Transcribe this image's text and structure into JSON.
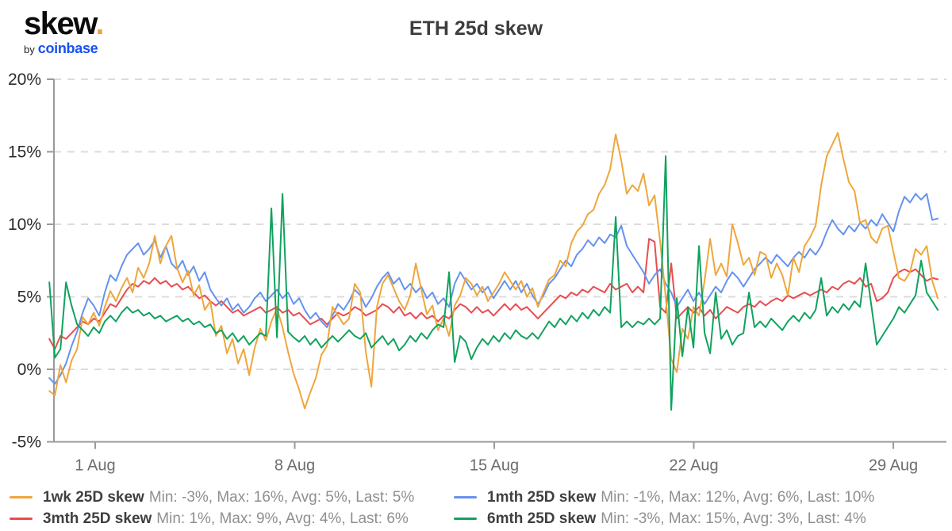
{
  "header": {
    "logo_text": "skew",
    "logo_dot": ".",
    "byline_by": "by",
    "byline_brand": "coinbase",
    "title": "ETH 25d skew"
  },
  "chart_data": {
    "type": "line",
    "title": "ETH 25d skew",
    "xlabel": "",
    "ylabel": "",
    "grid": "horizontal-dashed",
    "legend_position": "bottom",
    "x_axis": {
      "ticks": [
        {
          "day": 0,
          "label": "1 Aug"
        },
        {
          "day": 7,
          "label": "8 Aug"
        },
        {
          "day": 14,
          "label": "15 Aug"
        },
        {
          "day": 21,
          "label": "22 Aug"
        },
        {
          "day": 28,
          "label": "29 Aug"
        }
      ]
    },
    "y_axis": {
      "min": -5,
      "max": 20,
      "step": 5,
      "unit": "%",
      "grid_values": [
        0,
        5,
        10,
        15,
        20
      ],
      "ticks": [
        {
          "value": -5,
          "label": "-5%"
        },
        {
          "value": 0,
          "label": "0%"
        },
        {
          "value": 5,
          "label": "5%"
        },
        {
          "value": 10,
          "label": "10%"
        },
        {
          "value": 15,
          "label": "15%"
        },
        {
          "value": 20,
          "label": "20%"
        }
      ]
    },
    "series": [
      {
        "name": "1wk 25D skew",
        "color": "#EFA63C",
        "stats": "Min: -3%, Max: 16%, Avg: 5%, Last: 5%",
        "x_start": -1.61,
        "x_end": 29.56,
        "values": [
          -1.5,
          -1.8,
          0.3,
          -0.9,
          0.6,
          1.4,
          3.6,
          3.1,
          3.9,
          3.0,
          4.3,
          5.4,
          4.7,
          5.6,
          6.3,
          5.3,
          7.0,
          6.3,
          7.3,
          9.2,
          7.3,
          8.5,
          9.2,
          7.0,
          6.0,
          6.8,
          5.1,
          5.8,
          4.1,
          4.7,
          2.3,
          3.0,
          1.1,
          2.1,
          0.4,
          1.4,
          -0.4,
          1.5,
          2.8,
          2.0,
          3.3,
          4.2,
          2.9,
          1.2,
          -0.3,
          -1.4,
          -2.7,
          -1.6,
          -0.6,
          1.0,
          1.6,
          4.3,
          3.7,
          3.1,
          3.5,
          5.9,
          5.3,
          1.2,
          -1.2,
          4.3,
          5.9,
          6.5,
          5.6,
          4.7,
          4.1,
          5.1,
          7.3,
          5.5,
          3.8,
          4.4,
          2.7,
          3.5,
          2.3,
          4.4,
          5.1,
          6.3,
          5.9,
          5.1,
          5.7,
          4.7,
          5.3,
          5.9,
          6.7,
          6.1,
          5.5,
          6.1,
          5.0,
          5.6,
          4.3,
          5.3,
          6.2,
          6.5,
          7.5,
          7.1,
          8.7,
          9.5,
          9.9,
          10.7,
          11.0,
          12.1,
          12.7,
          13.8,
          16.2,
          14.4,
          12.1,
          12.7,
          12.3,
          13.5,
          11.3,
          12.0,
          8.8,
          5.0,
          0.7,
          -0.2,
          2.8,
          2.1,
          4.3,
          3.7,
          6.1,
          9.0,
          6.5,
          7.3,
          6.4,
          10.0,
          8.7,
          7.2,
          7.7,
          6.5,
          8.1,
          7.9,
          6.3,
          7.3,
          6.5,
          5.1,
          7.7,
          6.7,
          8.5,
          9.1,
          9.9,
          12.7,
          14.7,
          15.5,
          16.3,
          14.5,
          12.9,
          12.3,
          10.1,
          10.3,
          9.1,
          8.7,
          9.7,
          9.9,
          8.1,
          6.3,
          6.1,
          6.7,
          8.3,
          7.9,
          8.5,
          6.1,
          4.9
        ]
      },
      {
        "name": "1mth 25D skew",
        "color": "#6592F0",
        "stats": "Min: -1%, Max: 12%, Avg: 6%, Last: 10%",
        "x_start": -1.61,
        "x_end": 29.56,
        "values": [
          -0.6,
          -1.0,
          -0.4,
          0.4,
          1.6,
          2.6,
          3.9,
          4.9,
          4.4,
          3.7,
          5.3,
          6.5,
          6.1,
          7.1,
          7.9,
          8.3,
          8.7,
          7.9,
          8.3,
          8.9,
          7.7,
          8.5,
          7.3,
          6.9,
          7.5,
          6.5,
          7.1,
          6.1,
          6.7,
          5.5,
          4.9,
          4.4,
          4.9,
          4.1,
          4.5,
          3.9,
          4.3,
          4.9,
          5.3,
          4.7,
          5.1,
          5.5,
          4.9,
          5.3,
          4.5,
          4.9,
          4.1,
          3.5,
          3.9,
          3.3,
          2.9,
          3.7,
          4.5,
          4.1,
          4.7,
          5.5,
          5.1,
          4.3,
          4.9,
          5.7,
          6.3,
          6.7,
          5.9,
          6.3,
          5.5,
          5.9,
          5.3,
          5.7,
          4.9,
          5.3,
          4.5,
          4.9,
          4.3,
          5.9,
          6.7,
          6.1,
          5.5,
          5.9,
          5.3,
          5.7,
          4.9,
          5.5,
          6.1,
          5.5,
          6.1,
          5.3,
          5.9,
          5.1,
          4.5,
          5.1,
          5.9,
          6.3,
          6.9,
          7.5,
          7.1,
          7.9,
          8.3,
          8.9,
          8.5,
          9.1,
          8.7,
          9.3,
          9.1,
          9.9,
          8.5,
          7.9,
          7.3,
          6.7,
          5.9,
          6.5,
          6.9,
          5.9,
          5.3,
          4.3,
          4.9,
          5.5,
          4.7,
          5.3,
          4.5,
          5.1,
          5.7,
          5.3,
          6.1,
          6.7,
          6.3,
          5.7,
          6.3,
          6.9,
          7.3,
          7.7,
          7.3,
          7.9,
          7.5,
          7.1,
          7.7,
          8.1,
          7.7,
          8.3,
          7.9,
          8.5,
          9.5,
          10.3,
          9.7,
          9.3,
          9.9,
          9.5,
          10.1,
          9.7,
          10.3,
          9.9,
          10.7,
          10.1,
          9.5,
          10.9,
          11.9,
          11.5,
          12.1,
          11.7,
          12.1,
          10.3,
          10.4
        ]
      },
      {
        "name": "3mth 25D skew",
        "color": "#E84C50",
        "stats": "Min: 1%, Max: 9%, Avg: 4%, Last: 6%",
        "x_start": -1.61,
        "x_end": 29.56,
        "values": [
          2.1,
          1.4,
          2.3,
          2.1,
          2.5,
          2.9,
          3.3,
          3.1,
          3.5,
          3.3,
          3.9,
          4.5,
          4.3,
          4.9,
          5.5,
          5.9,
          5.7,
          6.1,
          5.9,
          6.3,
          5.9,
          6.1,
          5.7,
          5.9,
          5.5,
          5.7,
          5.3,
          4.9,
          5.1,
          4.7,
          4.4,
          4.7,
          4.3,
          3.9,
          4.1,
          3.7,
          3.9,
          4.1,
          4.3,
          3.9,
          4.1,
          4.3,
          3.9,
          4.1,
          3.7,
          3.9,
          3.5,
          3.1,
          3.3,
          3.5,
          3.1,
          3.5,
          3.9,
          3.7,
          3.9,
          4.3,
          4.1,
          3.7,
          3.9,
          4.1,
          4.5,
          4.3,
          3.9,
          4.3,
          3.7,
          3.9,
          3.5,
          3.9,
          3.5,
          3.7,
          3.3,
          3.7,
          3.5,
          4.1,
          4.5,
          4.3,
          3.9,
          4.3,
          3.9,
          4.1,
          3.7,
          4.1,
          4.5,
          4.1,
          4.5,
          4.1,
          4.3,
          3.9,
          3.5,
          3.9,
          4.3,
          4.7,
          5.1,
          4.9,
          5.3,
          5.1,
          5.5,
          5.3,
          5.7,
          5.5,
          5.3,
          5.9,
          5.5,
          5.7,
          5.9,
          5.3,
          5.7,
          5.3,
          9.0,
          8.8,
          4.3,
          3.9,
          7.3,
          3.5,
          3.9,
          4.3,
          3.9,
          4.3,
          3.7,
          4.1,
          3.5,
          3.9,
          4.3,
          4.1,
          3.9,
          4.3,
          4.5,
          4.3,
          4.7,
          4.4,
          4.7,
          4.9,
          4.7,
          5.1,
          4.9,
          5.1,
          5.3,
          5.1,
          5.3,
          5.5,
          5.3,
          5.7,
          5.5,
          5.9,
          6.1,
          5.9,
          6.3,
          5.7,
          5.9,
          4.7,
          4.9,
          5.3,
          6.3,
          6.7,
          6.9,
          6.7,
          6.9,
          6.5,
          6.1,
          6.3,
          6.2
        ]
      },
      {
        "name": "6mth 25D skew",
        "color": "#10A25E",
        "stats": "Min: -3%, Max: 15%, Avg: 3%, Last: 4%",
        "x_start": -1.61,
        "x_end": 29.56,
        "values": [
          6.0,
          0.8,
          1.4,
          6.0,
          4.4,
          3.1,
          2.7,
          2.3,
          2.9,
          2.5,
          3.3,
          3.7,
          3.3,
          3.9,
          4.3,
          3.9,
          4.1,
          3.7,
          3.9,
          3.5,
          3.7,
          3.3,
          3.5,
          3.7,
          3.3,
          3.5,
          3.1,
          3.3,
          2.9,
          3.1,
          2.5,
          2.7,
          2.1,
          2.5,
          1.9,
          2.3,
          1.7,
          2.1,
          2.5,
          2.3,
          11.1,
          2.2,
          12.1,
          2.6,
          2.2,
          1.9,
          2.3,
          1.7,
          2.1,
          1.5,
          1.9,
          2.3,
          1.9,
          2.3,
          2.7,
          2.3,
          2.1,
          2.5,
          1.5,
          1.9,
          2.3,
          1.7,
          2.1,
          1.3,
          1.7,
          2.3,
          1.9,
          2.5,
          2.1,
          2.7,
          3.1,
          2.9,
          6.7,
          0.5,
          2.3,
          1.9,
          0.7,
          1.5,
          2.1,
          1.7,
          2.3,
          1.9,
          2.5,
          2.1,
          2.7,
          2.3,
          2.1,
          2.5,
          2.1,
          2.7,
          3.3,
          2.9,
          3.5,
          3.1,
          3.7,
          3.3,
          3.9,
          3.5,
          4.1,
          3.7,
          4.3,
          3.9,
          10.5,
          2.9,
          3.3,
          2.9,
          3.3,
          3.1,
          3.5,
          3.1,
          3.5,
          14.7,
          -2.8,
          4.9,
          0.9,
          4.3,
          1.5,
          8.5,
          2.5,
          1.1,
          5.3,
          2.1,
          2.7,
          1.7,
          2.3,
          2.5,
          5.3,
          2.9,
          3.3,
          2.9,
          3.5,
          3.1,
          2.7,
          3.3,
          3.7,
          3.3,
          3.9,
          3.5,
          4.1,
          6.3,
          3.7,
          4.3,
          3.9,
          4.5,
          4.1,
          4.7,
          4.3,
          7.3,
          4.5,
          1.7,
          2.3,
          2.9,
          3.5,
          4.3,
          3.9,
          4.5,
          5.1,
          7.5,
          5.3,
          4.7,
          4.1
        ]
      }
    ]
  }
}
